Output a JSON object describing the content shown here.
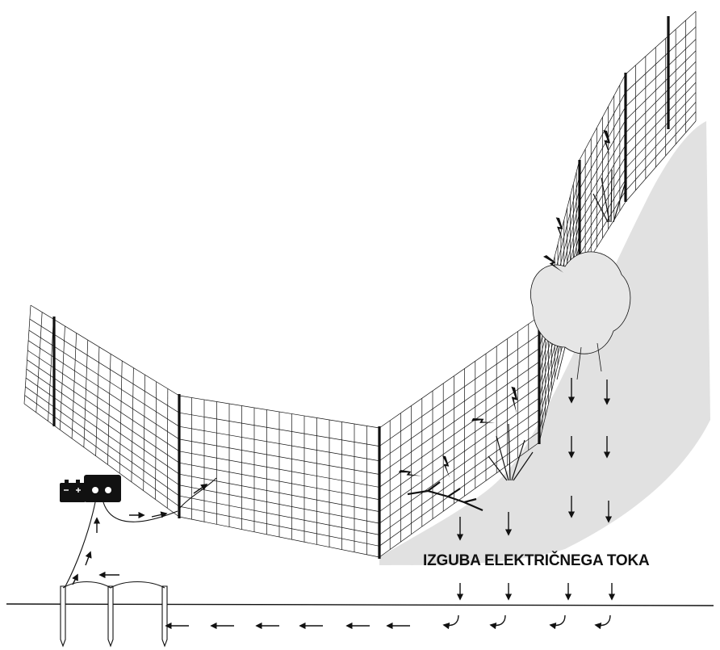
{
  "diagram": {
    "label": "IZGUBA ELEKTRIČNEGA TOKA",
    "colors": {
      "ink": "#111111",
      "vegetation": "#bdbdbd",
      "background": "#ffffff"
    },
    "components": {
      "energizer": "energizer-icon",
      "battery": "battery-icon",
      "ground_rods": "ground-rod-icon",
      "fence": "electric-netting-fence",
      "leak_sparks": "lightning-icon",
      "current_arrows": "arrow-icon"
    }
  }
}
